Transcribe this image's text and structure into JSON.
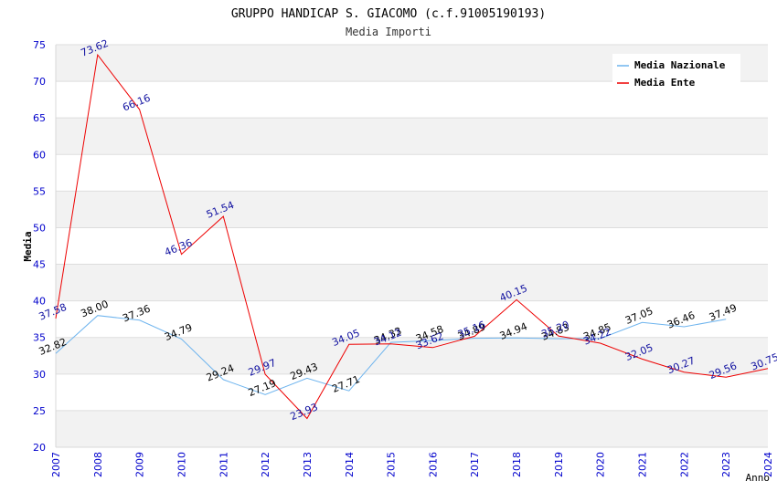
{
  "chart_data": {
    "type": "line",
    "title": "GRUPPO HANDICAP S. GIACOMO (c.f.91005190193)",
    "subtitle": "Media Importi",
    "xlabel": "Anno",
    "ylabel": "Media",
    "ylim": [
      20,
      75
    ],
    "yticks": [
      "20",
      "25",
      "30",
      "35",
      "40",
      "45",
      "50",
      "55",
      "60",
      "65",
      "70",
      "75"
    ],
    "categories": [
      "2007",
      "2008",
      "2009",
      "2010",
      "2011",
      "2012",
      "2013",
      "2014",
      "2015",
      "2016",
      "2017",
      "2018",
      "2019",
      "2020",
      "2021",
      "2022",
      "2023",
      "2024"
    ],
    "legend_position": "top-right",
    "series": [
      {
        "name": "Media Nazionale",
        "color": "#6eb4ee",
        "label_color": "#000000",
        "values": [
          32.82,
          38.0,
          37.36,
          34.79,
          29.24,
          27.19,
          29.43,
          27.71,
          34.33,
          34.58,
          34.89,
          34.94,
          34.83,
          34.85,
          37.05,
          36.46,
          37.49,
          null
        ],
        "labels": [
          "32.82",
          "38.00",
          "37.36",
          "34.79",
          "29.24",
          "27.19",
          "29.43",
          "27.71",
          "34.33",
          "34.58",
          "34.89",
          "34.94",
          "34.83",
          "34.85",
          "37.05",
          "36.46",
          "37.49",
          null
        ]
      },
      {
        "name": "Media Ente",
        "color": "#ee0000",
        "label_color": "#1010a0",
        "values": [
          37.58,
          73.62,
          66.16,
          46.36,
          51.54,
          29.97,
          23.93,
          34.05,
          34.12,
          33.62,
          35.16,
          40.15,
          35.2,
          34.22,
          32.05,
          30.27,
          29.56,
          30.75
        ],
        "labels": [
          "37.58",
          "73.62",
          "66.16",
          "46.36",
          "51.54",
          "29.97",
          "23.93",
          "34.05",
          "34.12",
          "33.62",
          "35.16",
          "40.15",
          "35.20",
          "34.22",
          "32.05",
          "30.27",
          "29.56",
          "30.75"
        ]
      }
    ]
  }
}
